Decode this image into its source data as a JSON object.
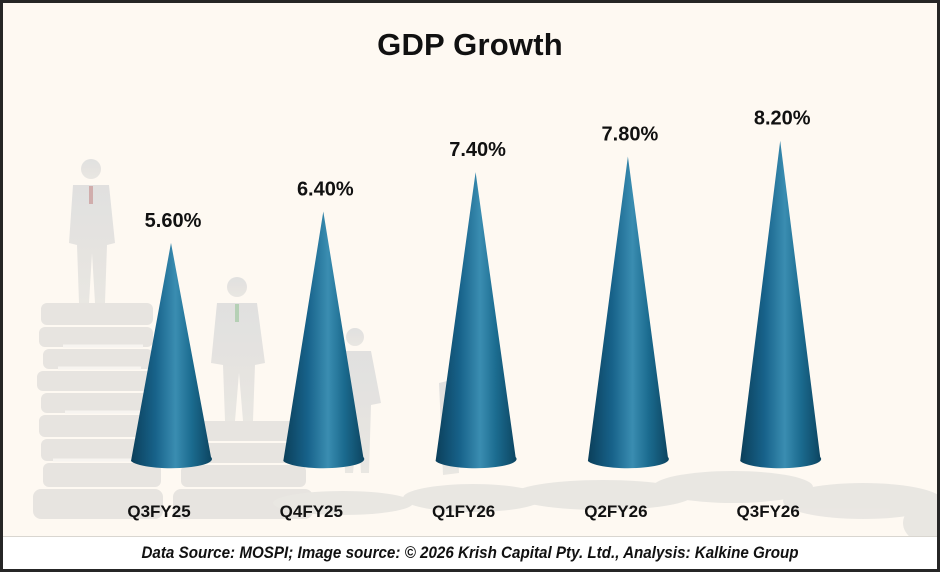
{
  "footer": {
    "source_text": "Data Source: MOSPI; Image source: © 2026 Krish Capital Pty. Ltd., Analysis: Kalkine Group"
  },
  "colors": {
    "background": "#FEF9F2",
    "cone_dark": "#0E4A66",
    "cone_mid": "#1B6B8F",
    "cone_light": "#3A8DB1",
    "text": "#111111"
  },
  "chart_data": {
    "type": "bar",
    "mark_shape": "cone",
    "title": "GDP Growth",
    "xlabel": "",
    "ylabel": "",
    "categories": [
      "Q3FY25",
      "Q4FY25",
      "Q1FY26",
      "Q2FY26",
      "Q3FY26"
    ],
    "values": [
      5.6,
      6.4,
      7.4,
      7.8,
      8.2
    ],
    "data_labels": [
      "5.60%",
      "6.40%",
      "7.40%",
      "7.80%",
      "8.20%"
    ],
    "unit": "%",
    "ylim": [
      0,
      8.2
    ],
    "grid": false,
    "legend": "none",
    "axes_visible": false
  }
}
